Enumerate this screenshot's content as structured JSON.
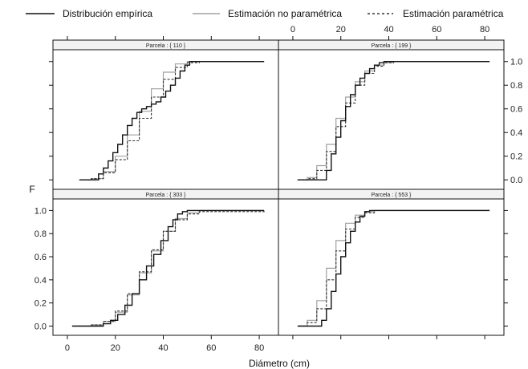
{
  "chart_data": {
    "type": "line",
    "legend": [
      {
        "label": "Distribución empírica",
        "style": "solid",
        "color": "#111111"
      },
      {
        "label": "Estimación no paramétrica",
        "style": "solid",
        "color": "#a0a0a0"
      },
      {
        "label": "Estimación paramétrica",
        "style": "dashed",
        "color": "#333333"
      }
    ],
    "xlabel": "Diámetro (cm)",
    "ylabel": "F",
    "xlim": [
      -6,
      88
    ],
    "ylim": [
      -0.08,
      1.1
    ],
    "xticks": [
      0,
      20,
      40,
      60,
      80
    ],
    "yticks": [
      "0.0",
      "0.2",
      "0.4",
      "0.6",
      "0.8",
      "1.0"
    ],
    "xtick_labels": [
      "0",
      "20",
      "40",
      "60",
      "80"
    ],
    "panels": [
      {
        "strip": "Parcela : { 110 }",
        "empirical": {
          "x": [
            5,
            10,
            13,
            15,
            17,
            19,
            21,
            23,
            25,
            27,
            29,
            31,
            33,
            35,
            37,
            39,
            41,
            43,
            45,
            47,
            49,
            51,
            53,
            55,
            60,
            82
          ],
          "y": [
            0,
            0,
            0.05,
            0.1,
            0.16,
            0.23,
            0.3,
            0.38,
            0.46,
            0.52,
            0.57,
            0.6,
            0.62,
            0.64,
            0.66,
            0.7,
            0.75,
            0.8,
            0.86,
            0.92,
            0.97,
            1,
            1,
            1,
            1,
            1
          ]
        },
        "nonparametric": {
          "x": [
            5,
            10,
            15,
            20,
            25,
            30,
            35,
            40,
            45,
            50,
            55,
            82
          ],
          "y": [
            0,
            0.01,
            0.07,
            0.2,
            0.38,
            0.58,
            0.77,
            0.91,
            0.98,
            1,
            1,
            1
          ]
        },
        "parametric": {
          "x": [
            5,
            10,
            15,
            20,
            25,
            30,
            35,
            40,
            45,
            50,
            55,
            82
          ],
          "y": [
            0,
            0.01,
            0.06,
            0.17,
            0.33,
            0.52,
            0.7,
            0.85,
            0.95,
            0.99,
            1,
            1
          ]
        }
      },
      {
        "strip": "Parcela : { 199 }",
        "empirical": {
          "x": [
            2,
            10,
            14,
            16,
            18,
            20,
            22,
            24,
            26,
            28,
            30,
            32,
            34,
            36,
            38,
            40,
            82
          ],
          "y": [
            0,
            0,
            0.08,
            0.22,
            0.36,
            0.5,
            0.62,
            0.72,
            0.8,
            0.86,
            0.9,
            0.94,
            0.97,
            0.99,
            1,
            1,
            1
          ]
        },
        "nonparametric": {
          "x": [
            2,
            6,
            10,
            14,
            18,
            22,
            26,
            30,
            34,
            38,
            42,
            82
          ],
          "y": [
            0,
            0.02,
            0.12,
            0.3,
            0.52,
            0.7,
            0.83,
            0.92,
            0.97,
            0.99,
            1,
            1
          ]
        },
        "parametric": {
          "x": [
            2,
            6,
            10,
            14,
            18,
            22,
            26,
            30,
            34,
            38,
            42,
            82
          ],
          "y": [
            0,
            0.01,
            0.08,
            0.24,
            0.45,
            0.65,
            0.8,
            0.9,
            0.96,
            0.99,
            1,
            1
          ]
        }
      },
      {
        "strip": "Parcela : { 303 }",
        "empirical": {
          "x": [
            2,
            12,
            15,
            18,
            21,
            24,
            27,
            30,
            33,
            36,
            39,
            42,
            44,
            46,
            48,
            50,
            55,
            68,
            82
          ],
          "y": [
            0,
            0,
            0.02,
            0.05,
            0.1,
            0.18,
            0.28,
            0.4,
            0.52,
            0.62,
            0.74,
            0.86,
            0.92,
            0.97,
            0.99,
            1,
            1,
            1,
            1
          ]
        },
        "nonparametric": {
          "x": [
            2,
            10,
            15,
            20,
            25,
            30,
            35,
            40,
            45,
            50,
            55,
            82
          ],
          "y": [
            0,
            0.01,
            0.04,
            0.12,
            0.27,
            0.46,
            0.65,
            0.82,
            0.93,
            0.98,
            1,
            1
          ]
        },
        "parametric": {
          "x": [
            2,
            10,
            15,
            20,
            25,
            30,
            35,
            40,
            45,
            50,
            55,
            82
          ],
          "y": [
            0,
            0.01,
            0.04,
            0.13,
            0.28,
            0.47,
            0.66,
            0.82,
            0.92,
            0.97,
            0.99,
            1
          ]
        }
      },
      {
        "strip": "Parcela : { 553 }",
        "empirical": {
          "x": [
            2,
            8,
            12,
            14,
            16,
            18,
            20,
            22,
            24,
            26,
            28,
            30,
            32,
            34,
            82
          ],
          "y": [
            0,
            0,
            0.05,
            0.15,
            0.3,
            0.45,
            0.6,
            0.72,
            0.82,
            0.9,
            0.95,
            0.99,
            1,
            1,
            1
          ]
        },
        "nonparametric": {
          "x": [
            2,
            6,
            10,
            14,
            18,
            22,
            26,
            30,
            34,
            82
          ],
          "y": [
            0,
            0.05,
            0.22,
            0.5,
            0.74,
            0.89,
            0.96,
            0.99,
            1,
            1
          ]
        },
        "parametric": {
          "x": [
            2,
            6,
            10,
            14,
            18,
            22,
            26,
            30,
            34,
            82
          ],
          "y": [
            0,
            0.03,
            0.15,
            0.4,
            0.65,
            0.84,
            0.94,
            0.98,
            1,
            1
          ]
        }
      }
    ]
  }
}
